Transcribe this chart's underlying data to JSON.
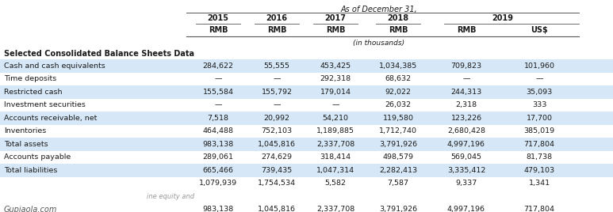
{
  "title": "As of December 31,",
  "col_headers_currency": [
    "RMB",
    "RMB",
    "RMB",
    "RMB",
    "RMB",
    "US$"
  ],
  "col_note": "(in thousands)",
  "section_header": "Selected Consolidated Balance Sheets Data",
  "rows": [
    {
      "label": "Cash and cash equivalents",
      "values": [
        "284,622",
        "55,555",
        "453,425",
        "1,034,385",
        "709,823",
        "101,960"
      ],
      "shade": true
    },
    {
      "label": "Time deposits",
      "values": [
        "—",
        "—",
        "292,318",
        "68,632",
        "—",
        "—"
      ],
      "shade": false
    },
    {
      "label": "Restricted cash",
      "values": [
        "155,584",
        "155,792",
        "179,014",
        "92,022",
        "244,313",
        "35,093"
      ],
      "shade": true
    },
    {
      "label": "Investment securities",
      "values": [
        "—",
        "—",
        "—",
        "26,032",
        "2,318",
        "333"
      ],
      "shade": false
    },
    {
      "label": "Accounts receivable, net",
      "values": [
        "7,518",
        "20,992",
        "54,210",
        "119,580",
        "123,226",
        "17,700"
      ],
      "shade": true
    },
    {
      "label": "Inventories",
      "values": [
        "464,488",
        "752,103",
        "1,189,885",
        "1,712,740",
        "2,680,428",
        "385,019"
      ],
      "shade": false
    },
    {
      "label": "Total assets",
      "values": [
        "983,138",
        "1,045,816",
        "2,337,708",
        "3,791,926",
        "4,997,196",
        "717,804"
      ],
      "shade": true
    },
    {
      "label": "Accounts payable",
      "values": [
        "289,061",
        "274,629",
        "318,414",
        "498,579",
        "569,045",
        "81,738"
      ],
      "shade": false
    },
    {
      "label": "Total liabilities",
      "values": [
        "665,466",
        "739,435",
        "1,047,314",
        "2,282,413",
        "3,335,412",
        "479,103"
      ],
      "shade": true
    },
    {
      "label": "",
      "values": [
        "1,079,939",
        "1,754,534",
        "5,582",
        "7,587",
        "9,337",
        "1,341"
      ],
      "shade": false
    },
    {
      "label": "ine equity and",
      "values": [],
      "shade": false,
      "watermark": true
    },
    {
      "label": "Gupiaola.com",
      "values": [
        "983,138",
        "1,045,816",
        "2,337,708",
        "3,791,926",
        "4,997,196",
        "717,804"
      ],
      "shade": false,
      "gupiaola": true
    }
  ],
  "shade_color": "#d6e8f7",
  "bg_color": "#ffffff",
  "text_color": "#1a1a1a",
  "line_color": "#555555"
}
